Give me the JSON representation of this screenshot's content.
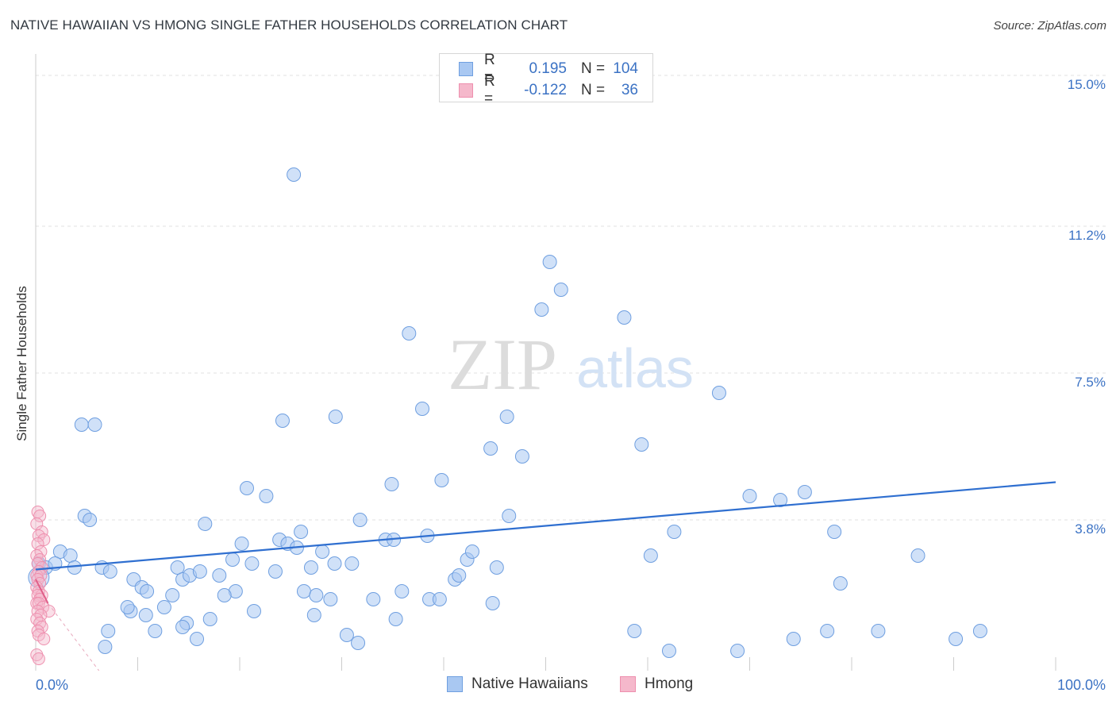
{
  "header": {
    "title": "NATIVE HAWAIIAN VS HMONG SINGLE FATHER HOUSEHOLDS CORRELATION CHART",
    "source": "Source: ZipAtlas.com"
  },
  "legend": {
    "rows": [
      {
        "r_label": "R =",
        "r_value": "0.195",
        "n_label": "N =",
        "n_value": "104",
        "color": "#a9c8f2"
      },
      {
        "r_label": "R =",
        "r_value": "-0.122",
        "n_label": "N =",
        "n_value": "36",
        "color": "#f5b8cb"
      }
    ]
  },
  "bottom_legend": {
    "items": [
      {
        "label": "Native Hawaiians",
        "color": "#a9c8f2"
      },
      {
        "label": "Hmong",
        "color": "#f5b8cb"
      }
    ]
  },
  "watermark": {
    "zip": "ZIP",
    "atlas": "atlas"
  },
  "chart_data": {
    "type": "scatter",
    "title": "NATIVE HAWAIIAN VS HMONG SINGLE FATHER HOUSEHOLDS CORRELATION CHART",
    "xlabel": "",
    "ylabel": "Single Father Households",
    "xlim": [
      0,
      100
    ],
    "ylim": [
      0,
      15.4
    ],
    "x_tick_labels": [
      "0.0%",
      "100.0%"
    ],
    "y_ticks": [
      3.8,
      7.5,
      11.2,
      15.0
    ],
    "y_tick_labels": [
      "3.8%",
      "7.5%",
      "11.2%",
      "15.0%"
    ],
    "grid": true,
    "legend_position": "bottom",
    "colors": {
      "native_hawaiians": "#6f9fe0",
      "hmong": "#ee8fae",
      "trend_blue": "#2f6fd0",
      "trend_pink": "#e0608a"
    },
    "series": [
      {
        "name": "Native Hawaiians",
        "r": 0.195,
        "n": 104,
        "trend": {
          "x": [
            0,
            100
          ],
          "y": [
            2.55,
            4.75
          ]
        },
        "points": [
          [
            25.3,
            12.5
          ],
          [
            50.4,
            10.3
          ],
          [
            49.6,
            9.1
          ],
          [
            57.7,
            8.9
          ],
          [
            51.5,
            9.6
          ],
          [
            36.6,
            8.5
          ],
          [
            67.0,
            7.0
          ],
          [
            4.5,
            6.2
          ],
          [
            5.8,
            6.2
          ],
          [
            24.2,
            6.3
          ],
          [
            29.4,
            6.4
          ],
          [
            37.9,
            6.6
          ],
          [
            46.2,
            6.4
          ],
          [
            59.4,
            5.7
          ],
          [
            44.6,
            5.6
          ],
          [
            47.7,
            5.4
          ],
          [
            20.7,
            4.6
          ],
          [
            22.6,
            4.4
          ],
          [
            34.9,
            4.7
          ],
          [
            39.8,
            4.8
          ],
          [
            70.0,
            4.4
          ],
          [
            73.0,
            4.3
          ],
          [
            75.4,
            4.5
          ],
          [
            4.8,
            3.9
          ],
          [
            5.3,
            3.8
          ],
          [
            16.6,
            3.7
          ],
          [
            31.8,
            3.8
          ],
          [
            46.4,
            3.9
          ],
          [
            62.6,
            3.5
          ],
          [
            26.0,
            3.5
          ],
          [
            0.3,
            2.7
          ],
          [
            1.0,
            2.6
          ],
          [
            2.4,
            3.0
          ],
          [
            1.9,
            2.7
          ],
          [
            3.4,
            2.9
          ],
          [
            3.8,
            2.6
          ],
          [
            6.5,
            2.6
          ],
          [
            7.3,
            2.5
          ],
          [
            13.9,
            2.6
          ],
          [
            14.4,
            2.3
          ],
          [
            15.1,
            2.4
          ],
          [
            16.1,
            2.5
          ],
          [
            18.0,
            2.4
          ],
          [
            19.6,
            2.0
          ],
          [
            19.3,
            2.8
          ],
          [
            20.2,
            3.2
          ],
          [
            21.2,
            2.7
          ],
          [
            23.5,
            2.5
          ],
          [
            23.9,
            3.3
          ],
          [
            24.7,
            3.2
          ],
          [
            25.6,
            3.1
          ],
          [
            27.0,
            2.6
          ],
          [
            28.1,
            3.0
          ],
          [
            29.3,
            2.7
          ],
          [
            31.0,
            2.7
          ],
          [
            34.3,
            3.3
          ],
          [
            35.1,
            3.3
          ],
          [
            38.4,
            3.4
          ],
          [
            41.1,
            2.3
          ],
          [
            41.5,
            2.4
          ],
          [
            42.3,
            2.8
          ],
          [
            42.8,
            3.0
          ],
          [
            45.2,
            2.6
          ],
          [
            9.6,
            2.3
          ],
          [
            10.4,
            2.1
          ],
          [
            10.9,
            2.0
          ],
          [
            13.4,
            1.9
          ],
          [
            9.3,
            1.5
          ],
          [
            10.8,
            1.4
          ],
          [
            12.6,
            1.6
          ],
          [
            9.0,
            1.6
          ],
          [
            14.8,
            1.2
          ],
          [
            17.1,
            1.3
          ],
          [
            18.5,
            1.9
          ],
          [
            21.4,
            1.5
          ],
          [
            26.3,
            2.0
          ],
          [
            27.5,
            1.9
          ],
          [
            28.9,
            1.8
          ],
          [
            33.1,
            1.8
          ],
          [
            35.9,
            2.0
          ],
          [
            38.6,
            1.8
          ],
          [
            39.6,
            1.8
          ],
          [
            44.8,
            1.7
          ],
          [
            7.1,
            1.0
          ],
          [
            14.4,
            1.1
          ],
          [
            27.3,
            1.4
          ],
          [
            35.3,
            1.3
          ],
          [
            30.5,
            0.9
          ],
          [
            31.6,
            0.7
          ],
          [
            6.8,
            0.6
          ],
          [
            11.7,
            1.0
          ],
          [
            15.8,
            0.8
          ],
          [
            77.6,
            1.0
          ],
          [
            78.9,
            2.2
          ],
          [
            78.3,
            3.5
          ],
          [
            60.3,
            2.9
          ],
          [
            86.5,
            2.9
          ],
          [
            58.7,
            1.0
          ],
          [
            62.1,
            0.5
          ],
          [
            68.8,
            0.5
          ],
          [
            74.3,
            0.8
          ],
          [
            92.6,
            1.0
          ],
          [
            90.2,
            0.8
          ],
          [
            82.6,
            1.0
          ]
        ]
      },
      {
        "name": "Hmong",
        "r": -0.122,
        "n": 36,
        "trend": {
          "x": [
            0,
            1.2
          ],
          "y": [
            2.3,
            1.7
          ]
        },
        "trend_extension": {
          "x": [
            1.2,
            6.2
          ],
          "y": [
            1.7,
            0.0
          ]
        },
        "points": [
          [
            0.2,
            4.0
          ],
          [
            0.4,
            3.9
          ],
          [
            0.1,
            3.7
          ],
          [
            0.6,
            3.5
          ],
          [
            0.3,
            3.4
          ],
          [
            0.8,
            3.3
          ],
          [
            0.2,
            3.2
          ],
          [
            0.5,
            3.0
          ],
          [
            0.1,
            2.9
          ],
          [
            0.4,
            2.8
          ],
          [
            0.2,
            2.7
          ],
          [
            0.6,
            2.6
          ],
          [
            0.3,
            2.5
          ],
          [
            0.1,
            2.4
          ],
          [
            0.5,
            2.4
          ],
          [
            0.2,
            2.3
          ],
          [
            0.4,
            2.2
          ],
          [
            0.1,
            2.1
          ],
          [
            0.3,
            2.0
          ],
          [
            0.6,
            1.9
          ],
          [
            0.2,
            1.9
          ],
          [
            0.4,
            1.8
          ],
          [
            0.1,
            1.7
          ],
          [
            0.3,
            1.7
          ],
          [
            0.7,
            1.6
          ],
          [
            0.2,
            1.5
          ],
          [
            1.3,
            1.5
          ],
          [
            0.5,
            1.4
          ],
          [
            0.1,
            1.3
          ],
          [
            0.4,
            1.2
          ],
          [
            0.6,
            1.1
          ],
          [
            0.2,
            1.0
          ],
          [
            0.3,
            0.9
          ],
          [
            0.8,
            0.8
          ],
          [
            0.1,
            0.4
          ],
          [
            0.3,
            0.3
          ]
        ]
      }
    ]
  }
}
